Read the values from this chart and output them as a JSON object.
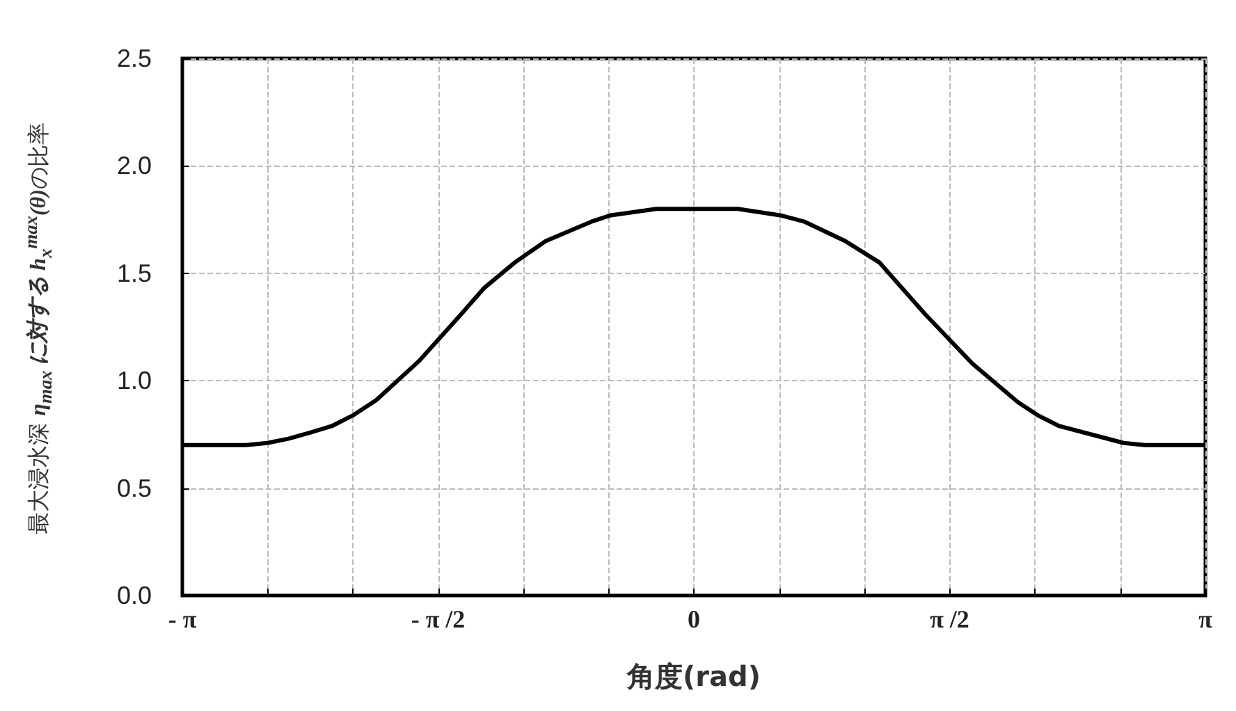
{
  "chart_data": {
    "type": "line",
    "xlabel": "角度(rad)",
    "ylabel": "最大浸水深 η$_{max}$ に対する h$_{x}$$^{max}$(θ)の比率",
    "x": [
      -3.1416,
      -2.75,
      -2.62,
      -2.49,
      -2.35,
      -2.22,
      -2.09,
      -1.95,
      -1.69,
      -1.44,
      -1.29,
      -1.1,
      -0.91,
      -0.63,
      -0.51,
      -0.23,
      0.27,
      0.53,
      0.68,
      0.93,
      1.14,
      1.42,
      1.71,
      1.99,
      2.11,
      2.24,
      2.49,
      2.64,
      2.77,
      3.1416
    ],
    "series": [
      {
        "color": "#000000",
        "values": [
          0.7,
          0.7,
          0.71,
          0.73,
          0.76,
          0.79,
          0.84,
          0.91,
          1.09,
          1.3,
          1.43,
          1.55,
          1.65,
          1.74,
          1.77,
          1.8,
          1.8,
          1.77,
          1.74,
          1.65,
          1.55,
          1.31,
          1.08,
          0.9,
          0.84,
          0.79,
          0.74,
          0.71,
          0.7,
          0.7
        ]
      }
    ],
    "xlim": [
      -3.1416,
      3.1416
    ],
    "xticks": [
      {
        "value": -3.1416,
        "label": "- π"
      },
      {
        "value": -2.618,
        "label": null
      },
      {
        "value": -2.0944,
        "label": null
      },
      {
        "value": -1.5708,
        "label": "- π /2"
      },
      {
        "value": -1.0472,
        "label": null
      },
      {
        "value": -0.5236,
        "label": null
      },
      0,
      {
        "value": 0.5236,
        "label": null
      },
      {
        "value": 1.0472,
        "label": null
      },
      {
        "value": 1.5708,
        "label": "π /2"
      },
      {
        "value": 2.0944,
        "label": null
      },
      {
        "value": 2.618,
        "label": null
      },
      {
        "value": 3.1416,
        "label": "π"
      }
    ],
    "ylim": [
      0,
      2.5
    ],
    "yticks": [
      {
        "value": 0,
        "label": "0.0"
      },
      {
        "value": 0.5,
        "label": "0.5"
      },
      {
        "value": 1,
        "label": "1.0"
      },
      {
        "value": 1.5,
        "label": "1.5"
      },
      {
        "value": 2,
        "label": "2.0"
      },
      {
        "value": 2.5,
        "label": "2.5"
      }
    ],
    "grid": true,
    "marker": "none",
    "line_style": "solid"
  }
}
